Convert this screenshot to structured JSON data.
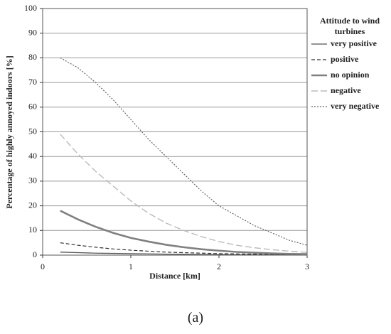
{
  "chart_data": {
    "type": "line",
    "xlabel": "Distance [km]",
    "ylabel": "Percentage of highly annoyed indoors [%]",
    "legend_title": "Attitude to wind turbines",
    "caption": "(a)",
    "x": [
      0.2,
      0.4,
      0.6,
      0.8,
      1.0,
      1.2,
      1.4,
      1.6,
      1.8,
      2.0,
      2.2,
      2.4,
      2.6,
      2.8,
      3.0
    ],
    "series": [
      {
        "name": "very positive",
        "color": "#555555",
        "width": 1.3,
        "dash": "none",
        "values": [
          1.2,
          1,
          0.8,
          0.7,
          0.6,
          0.5,
          0.4,
          0.3,
          0.25,
          0.2,
          0.15,
          0.1,
          0.1,
          0.1,
          0.1
        ]
      },
      {
        "name": "positive",
        "color": "#333333",
        "width": 1.2,
        "dash": "5 3",
        "values": [
          5,
          4,
          3.2,
          2.5,
          2,
          1.6,
          1.2,
          1,
          0.8,
          0.6,
          0.5,
          0.4,
          0.3,
          0.2,
          0.2
        ]
      },
      {
        "name": "no opinion",
        "color": "#808080",
        "width": 2.6,
        "dash": "none",
        "values": [
          18,
          14.5,
          11.5,
          9,
          7,
          5.5,
          4.2,
          3.2,
          2.4,
          1.8,
          1.3,
          1,
          0.7,
          0.5,
          0.4
        ]
      },
      {
        "name": "negative",
        "color": "#bbbbbb",
        "width": 1.4,
        "dash": "9 4",
        "values": [
          49,
          41,
          34,
          28,
          22,
          17,
          13,
          10,
          7.5,
          5.5,
          4,
          3,
          2.2,
          1.6,
          1.1
        ]
      },
      {
        "name": "very negative",
        "color": "#666666",
        "width": 1.2,
        "dash": "2 2",
        "values": [
          80,
          76,
          70,
          63,
          55,
          47,
          40,
          33,
          26,
          20,
          16,
          12,
          9,
          6,
          4
        ]
      }
    ],
    "xlim": [
      0,
      3
    ],
    "xticks": [
      0,
      1,
      2,
      3
    ],
    "ylim": [
      0,
      100
    ],
    "yticks": [
      0,
      10,
      20,
      30,
      40,
      50,
      60,
      70,
      80,
      90,
      100
    ],
    "grid": true
  }
}
